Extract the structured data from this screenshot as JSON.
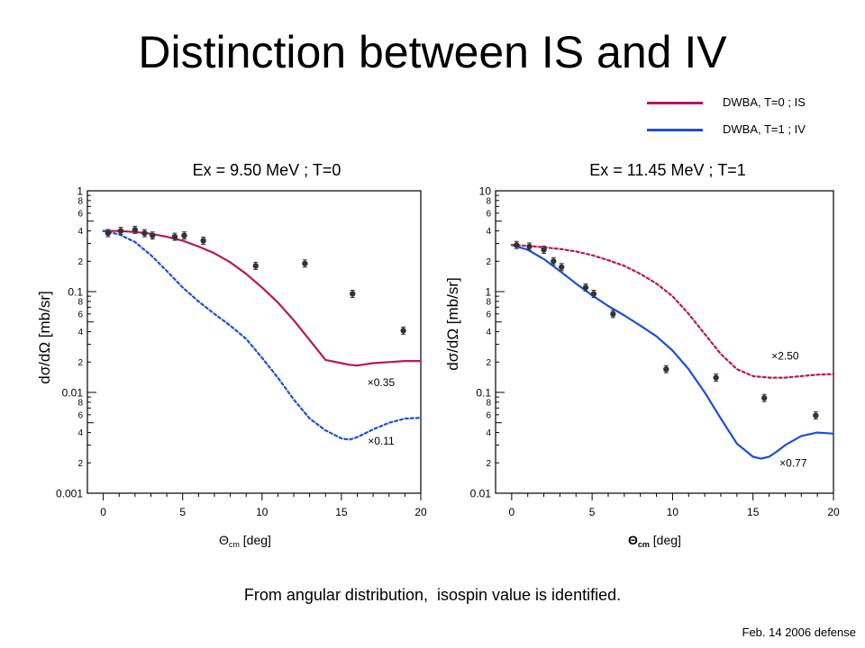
{
  "slide": {
    "title": "Distinction between IS and IV",
    "caption": "From angular distribution,  isospin value is identified.",
    "footer": "Feb. 14 2006 defense"
  },
  "legend": [
    {
      "label": "DWBA, T=0 ; IS",
      "color": "#b5185a"
    },
    {
      "label": "DWBA, T=1 ; IV",
      "color": "#1a4fd6"
    }
  ],
  "colors": {
    "is": "#b5185a",
    "iv": "#1a4fd6",
    "data": "#333333"
  },
  "chart_data": [
    {
      "type": "scatter",
      "title": "Ex = 9.50 MeV ; T=0",
      "xlabel": {
        "main": "Θ",
        "sub": "cm",
        "unit": "[deg]"
      },
      "ylabel": "dσ/dΩ [mb/sr]",
      "xlim": [
        -1,
        20
      ],
      "ylim": [
        0.001,
        1
      ],
      "yscale": "log",
      "xticks": [
        0,
        5,
        10,
        15,
        20
      ],
      "ytick_majors": [
        {
          "v": 1,
          "label": "1"
        },
        {
          "v": 0.1,
          "label": "0.1"
        },
        {
          "v": 0.01,
          "label": "0.01"
        },
        {
          "v": 0.001,
          "label": "0.001"
        }
      ],
      "grid": false,
      "data_points": {
        "x": [
          0.3,
          1.1,
          2.0,
          2.6,
          3.1,
          4.5,
          5.1,
          6.3,
          9.6,
          12.7,
          15.7,
          18.9
        ],
        "y": [
          0.38,
          0.4,
          0.41,
          0.38,
          0.36,
          0.35,
          0.36,
          0.32,
          0.18,
          0.19,
          0.095,
          0.041
        ]
      },
      "series": [
        {
          "key": "is",
          "style": "solid",
          "x": [
            0,
            1,
            2,
            3,
            4,
            5,
            6,
            7,
            8,
            9,
            10,
            11,
            12,
            13,
            14,
            15,
            15.5,
            16,
            16.5,
            17,
            18,
            19,
            20
          ],
          "y": [
            0.4,
            0.4,
            0.39,
            0.375,
            0.35,
            0.32,
            0.28,
            0.24,
            0.195,
            0.15,
            0.11,
            0.078,
            0.052,
            0.033,
            0.021,
            0.0195,
            0.0188,
            0.0185,
            0.019,
            0.0195,
            0.02,
            0.0205,
            0.0205
          ]
        },
        {
          "key": "iv",
          "style": "dashed",
          "x": [
            0,
            1,
            2,
            3,
            4,
            5,
            6,
            7,
            8,
            9,
            10,
            11,
            12,
            13,
            14,
            15,
            15.5,
            16,
            17,
            18,
            19,
            20
          ],
          "y": [
            0.4,
            0.37,
            0.31,
            0.23,
            0.16,
            0.11,
            0.08,
            0.06,
            0.046,
            0.034,
            0.022,
            0.014,
            0.0085,
            0.0055,
            0.0042,
            0.0035,
            0.0034,
            0.0036,
            0.0043,
            0.005,
            0.0055,
            0.0056
          ]
        }
      ],
      "annotations": [
        {
          "text": "×0.35",
          "x": 17.5,
          "y": 0.0125
        },
        {
          "text": "×0.11",
          "x": 17.5,
          "y": 0.0033
        }
      ]
    },
    {
      "type": "scatter",
      "title": "Ex = 11.45 MeV ; T=1",
      "xlabel": {
        "main": "Θ",
        "sub": "cm",
        "unit": "[deg]",
        "bold": true
      },
      "ylabel": "dσ/dΩ [mb/sr]",
      "xlim": [
        -1,
        20
      ],
      "ylim": [
        0.01,
        10
      ],
      "yscale": "log",
      "xticks": [
        0,
        5,
        10,
        15,
        20
      ],
      "ytick_majors": [
        {
          "v": 10,
          "label": "10"
        },
        {
          "v": 1,
          "label": "1"
        },
        {
          "v": 0.1,
          "label": "0.1"
        },
        {
          "v": 0.01,
          "label": "0.01"
        }
      ],
      "grid": false,
      "data_points": {
        "x": [
          0.3,
          1.1,
          2.0,
          2.6,
          3.1,
          4.6,
          5.1,
          6.3,
          9.6,
          12.7,
          15.7,
          18.9
        ],
        "y": [
          2.9,
          2.8,
          2.6,
          2.0,
          1.75,
          1.1,
          0.95,
          0.6,
          0.17,
          0.14,
          0.088,
          0.059
        ]
      },
      "series": [
        {
          "key": "iv",
          "style": "solid",
          "x": [
            0,
            1,
            2,
            3,
            4,
            5,
            6,
            7,
            8,
            9,
            10,
            11,
            12,
            13,
            14,
            15,
            15.5,
            16,
            16.5,
            17,
            18,
            19,
            20
          ],
          "y": [
            2.9,
            2.6,
            2.1,
            1.6,
            1.2,
            0.92,
            0.72,
            0.58,
            0.46,
            0.36,
            0.26,
            0.17,
            0.1,
            0.055,
            0.031,
            0.023,
            0.022,
            0.023,
            0.026,
            0.03,
            0.037,
            0.04,
            0.039
          ]
        },
        {
          "key": "is",
          "style": "dashed",
          "x": [
            0,
            1,
            2,
            3,
            4,
            5,
            6,
            7,
            8,
            9,
            10,
            11,
            12,
            13,
            14,
            15,
            16,
            17,
            18,
            19,
            20
          ],
          "y": [
            2.9,
            2.85,
            2.75,
            2.65,
            2.5,
            2.3,
            2.05,
            1.8,
            1.5,
            1.2,
            0.9,
            0.6,
            0.38,
            0.24,
            0.17,
            0.145,
            0.14,
            0.14,
            0.145,
            0.15,
            0.152
          ]
        }
      ],
      "annotations": [
        {
          "text": "×2.50",
          "x": 17.0,
          "y": 0.23
        },
        {
          "text": "×0.77",
          "x": 17.5,
          "y": 0.02
        }
      ]
    }
  ]
}
